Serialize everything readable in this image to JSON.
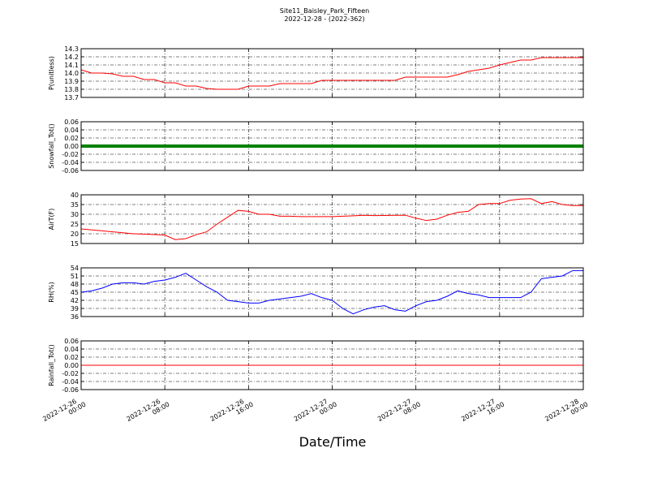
{
  "chart_data": {
    "type": "line",
    "title": "Site11_Baisley_Park_Fifteen",
    "subtitle": "2022-12-28 - (2022-362)",
    "xlabel": "Date/Time",
    "grid": true,
    "xlim": [
      "2022-12-26 00:00",
      "2022-12-28 00:00"
    ],
    "xticks": [
      "2022-12-26 00:00",
      "2022-12-26 08:00",
      "2022-12-26 16:00",
      "2022-12-27 00:00",
      "2022-12-27 08:00",
      "2022-12-27 16:00",
      "2022-12-28 00:00"
    ],
    "x": [
      "2022-12-26 00:00",
      "2022-12-26 01:00",
      "2022-12-26 02:00",
      "2022-12-26 03:00",
      "2022-12-26 04:00",
      "2022-12-26 05:00",
      "2022-12-26 06:00",
      "2022-12-26 07:00",
      "2022-12-26 08:00",
      "2022-12-26 09:00",
      "2022-12-26 10:00",
      "2022-12-26 11:00",
      "2022-12-26 12:00",
      "2022-12-26 13:00",
      "2022-12-26 14:00",
      "2022-12-26 15:00",
      "2022-12-26 16:00",
      "2022-12-26 17:00",
      "2022-12-26 18:00",
      "2022-12-26 19:00",
      "2022-12-26 20:00",
      "2022-12-26 21:00",
      "2022-12-26 22:00",
      "2022-12-26 23:00",
      "2022-12-27 00:00",
      "2022-12-27 01:00",
      "2022-12-27 02:00",
      "2022-12-27 03:00",
      "2022-12-27 04:00",
      "2022-12-27 05:00",
      "2022-12-27 06:00",
      "2022-12-27 07:00",
      "2022-12-27 08:00",
      "2022-12-27 09:00",
      "2022-12-27 10:00",
      "2022-12-27 11:00",
      "2022-12-27 12:00",
      "2022-12-27 13:00",
      "2022-12-27 14:00",
      "2022-12-27 15:00",
      "2022-12-27 16:00",
      "2022-12-27 17:00",
      "2022-12-27 18:00",
      "2022-12-27 19:00",
      "2022-12-27 20:00",
      "2022-12-27 21:00",
      "2022-12-27 22:00",
      "2022-12-27 23:00",
      "2022-12-28 00:00"
    ],
    "panels": [
      {
        "ylabel": "P(unitless)",
        "color": "#ff0000",
        "ylim": [
          13.7,
          14.3
        ],
        "yticks": [
          13.7,
          13.8,
          13.9,
          {
            "value": 14,
            "label": "14.0"
          },
          14.1,
          14.2,
          14.3
        ],
        "values": [
          14.04,
          14.0,
          14.0,
          13.99,
          13.96,
          13.96,
          13.92,
          13.92,
          13.88,
          13.88,
          13.84,
          13.84,
          13.81,
          13.8,
          13.8,
          13.8,
          13.84,
          13.84,
          13.84,
          13.87,
          13.87,
          13.87,
          13.87,
          13.91,
          13.91,
          13.91,
          13.91,
          13.91,
          13.91,
          13.91,
          13.91,
          13.95,
          13.95,
          13.95,
          13.95,
          13.95,
          13.98,
          14.02,
          14.04,
          14.06,
          14.1,
          14.13,
          14.16,
          14.16,
          14.19,
          14.19,
          14.19,
          14.19,
          14.19
        ]
      },
      {
        "ylabel": "Snowfall_Tot()",
        "color": "#008000",
        "ylim": [
          -0.06,
          0.06
        ],
        "yticks": [
          -0.06,
          -0.04,
          -0.02,
          {
            "value": 0,
            "label": "0.00"
          },
          0.02,
          0.04,
          0.06
        ],
        "values": [
          0,
          0,
          0,
          0,
          0,
          0,
          0,
          0,
          0,
          0,
          0,
          0,
          0,
          0,
          0,
          0,
          0,
          0,
          0,
          0,
          0,
          0,
          0,
          0,
          0,
          0,
          0,
          0,
          0,
          0,
          0,
          0,
          0,
          0,
          0,
          0,
          0,
          0,
          0,
          0,
          0,
          0,
          0,
          0,
          0,
          0,
          0,
          0,
          0
        ]
      },
      {
        "ylabel": "AirT(F)",
        "color": "#ff0000",
        "ylim": [
          15,
          40
        ],
        "yticks": [
          15,
          20,
          25,
          30,
          35,
          40
        ],
        "values": [
          22.5,
          22,
          21.5,
          21,
          20.5,
          20,
          19.8,
          19.6,
          19.3,
          17,
          17.5,
          19.5,
          21,
          25,
          28.5,
          32,
          31.5,
          30,
          30,
          29,
          29,
          28.8,
          28.8,
          28.8,
          28.8,
          29,
          29.2,
          29.5,
          29.3,
          29.4,
          29.5,
          29.5,
          28,
          26.8,
          27.5,
          29.5,
          31,
          31.5,
          35,
          35.5,
          35.5,
          37.2,
          37.8,
          38,
          35.5,
          36.5,
          35,
          34.5,
          34.5
        ]
      },
      {
        "ylabel": "RH(%)",
        "color": "#0000ff",
        "ylim": [
          36,
          54
        ],
        "yticks": [
          36,
          39,
          42,
          45,
          48,
          51,
          54
        ],
        "values": [
          45,
          45.5,
          46.5,
          48,
          48.5,
          48.5,
          48,
          49,
          49.5,
          50.5,
          52,
          49.5,
          47,
          45,
          42,
          41.5,
          41,
          41,
          42,
          42.5,
          43,
          43.5,
          44.5,
          43,
          42,
          39,
          37,
          38.5,
          39.5,
          40,
          38.5,
          38,
          40,
          41.5,
          42,
          43.5,
          45.5,
          44.5,
          44,
          43,
          43,
          43,
          43,
          45,
          50,
          50.5,
          51,
          53,
          53
        ]
      },
      {
        "ylabel": "Rainfall_Tot()",
        "color": "#ff0000",
        "ylim": [
          -0.06,
          0.06
        ],
        "yticks": [
          -0.06,
          -0.04,
          -0.02,
          {
            "value": 0,
            "label": "0.00"
          },
          0.02,
          0.04,
          0.06
        ],
        "values": [
          0,
          0,
          0,
          0,
          0,
          0,
          0,
          0,
          0,
          0,
          0,
          0,
          0,
          0,
          0,
          0,
          0,
          0,
          0,
          0,
          0,
          0,
          0,
          0,
          0,
          0,
          0,
          0,
          0,
          0,
          0,
          0,
          0,
          0,
          0,
          0,
          0,
          0,
          0,
          0,
          0,
          0,
          0,
          0,
          0,
          0,
          0,
          0,
          0
        ]
      }
    ]
  }
}
